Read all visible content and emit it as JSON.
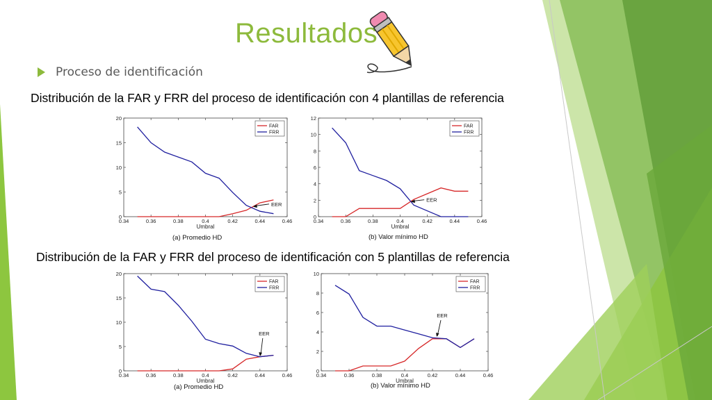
{
  "slide": {
    "title": "Resultados",
    "bullet": "Proceso de identificación",
    "section_1": "Distribución de la FAR y FRR del proceso de identificación con 4 plantillas de referencia",
    "section_2": "Distribución de la FAR y FRR del proceso de identificación con 5 plantillas de referencia"
  },
  "colors": {
    "accent": "#8dba3c",
    "far": "#d62728",
    "frr": "#1f1f9f",
    "text_gray": "#595959"
  },
  "icons": {
    "pencil": "pencil-icon",
    "bullet": "triangle-bullet-icon"
  },
  "chart_data": [
    {
      "type": "line",
      "caption": "(a) Promedio HD",
      "xlabel": "Umbral",
      "ylabel": "",
      "xlim": [
        0.34,
        0.46
      ],
      "ylim": [
        0,
        20
      ],
      "xticks": [
        0.34,
        0.36,
        0.38,
        0.4,
        0.42,
        0.44,
        0.46
      ],
      "yticks": [
        0,
        5,
        10,
        15,
        20
      ],
      "legend": "top-right",
      "series": [
        {
          "name": "FAR",
          "x": [
            0.35,
            0.36,
            0.37,
            0.38,
            0.39,
            0.4,
            0.41,
            0.42,
            0.43,
            0.44,
            0.45
          ],
          "y": [
            0,
            0,
            0,
            0,
            0,
            0,
            0,
            0.6,
            1.3,
            2.8,
            3.4
          ]
        },
        {
          "name": "FRR",
          "x": [
            0.35,
            0.36,
            0.37,
            0.38,
            0.39,
            0.4,
            0.41,
            0.42,
            0.43,
            0.44,
            0.45
          ],
          "y": [
            18.2,
            15,
            13.1,
            12.1,
            11.1,
            8.8,
            7.8,
            4.9,
            2.3,
            1.1,
            0.6
          ]
        }
      ],
      "annotation": {
        "label": "EER",
        "x": 0.435,
        "y": 2.0
      }
    },
    {
      "type": "line",
      "caption": "(b) Valor mínimo HD",
      "xlabel": "Umbral",
      "ylabel": "",
      "xlim": [
        0.34,
        0.46
      ],
      "ylim": [
        0,
        12
      ],
      "xticks": [
        0.34,
        0.36,
        0.38,
        0.4,
        0.42,
        0.44,
        0.46
      ],
      "yticks": [
        0,
        2,
        4,
        6,
        8,
        10,
        12
      ],
      "legend": "top-right",
      "series": [
        {
          "name": "FAR",
          "x": [
            0.35,
            0.36,
            0.37,
            0.38,
            0.39,
            0.4,
            0.41,
            0.42,
            0.43,
            0.44,
            0.45
          ],
          "y": [
            0,
            0,
            1,
            1,
            1,
            1,
            2.1,
            2.8,
            3.5,
            3.1,
            3.1
          ]
        },
        {
          "name": "FRR",
          "x": [
            0.35,
            0.36,
            0.37,
            0.38,
            0.39,
            0.4,
            0.41,
            0.42,
            0.43,
            0.44,
            0.45
          ],
          "y": [
            10.8,
            9,
            5.6,
            5,
            4.4,
            3.4,
            1.4,
            0.7,
            0,
            0,
            0
          ]
        }
      ],
      "annotation": {
        "label": "EER",
        "x": 0.408,
        "y": 1.8
      }
    },
    {
      "type": "line",
      "caption": "(a) Promedio HD",
      "xlabel": "Umbral",
      "ylabel": "",
      "xlim": [
        0.34,
        0.46
      ],
      "ylim": [
        0,
        20
      ],
      "xticks": [
        0.34,
        0.36,
        0.38,
        0.4,
        0.42,
        0.44,
        0.46
      ],
      "yticks": [
        0,
        5,
        10,
        15,
        20
      ],
      "legend": "top-right",
      "series": [
        {
          "name": "FAR",
          "x": [
            0.35,
            0.36,
            0.37,
            0.38,
            0.39,
            0.4,
            0.41,
            0.42,
            0.43,
            0.44,
            0.45
          ],
          "y": [
            0,
            0,
            0,
            0,
            0,
            0,
            0,
            0.4,
            2.4,
            2.9,
            3.2
          ]
        },
        {
          "name": "FRR",
          "x": [
            0.35,
            0.36,
            0.37,
            0.38,
            0.39,
            0.4,
            0.41,
            0.42,
            0.43,
            0.44,
            0.45
          ],
          "y": [
            19.5,
            16.8,
            16.3,
            13.5,
            10.2,
            6.5,
            5.6,
            5.1,
            3.6,
            2.9,
            3.2
          ]
        }
      ],
      "annotation": {
        "label": "EER",
        "x": 0.44,
        "y": 3.0
      }
    },
    {
      "type": "line",
      "caption": "(b) Valor mínimo HD",
      "xlabel": "Umbral",
      "ylabel": "",
      "xlim": [
        0.34,
        0.46
      ],
      "ylim": [
        0,
        10
      ],
      "xticks": [
        0.34,
        0.36,
        0.38,
        0.4,
        0.42,
        0.44,
        0.46
      ],
      "yticks": [
        0,
        2,
        4,
        6,
        8,
        10
      ],
      "legend": "top-right",
      "series": [
        {
          "name": "FAR",
          "x": [
            0.35,
            0.36,
            0.37,
            0.38,
            0.39,
            0.4,
            0.41,
            0.42,
            0.43,
            0.44,
            0.45
          ],
          "y": [
            0,
            0,
            0.5,
            0.5,
            0.5,
            1,
            2.3,
            3.3,
            3.3,
            2.4,
            3.3
          ]
        },
        {
          "name": "FRR",
          "x": [
            0.35,
            0.36,
            0.37,
            0.38,
            0.39,
            0.4,
            0.41,
            0.42,
            0.43,
            0.44,
            0.45
          ],
          "y": [
            8.8,
            7.9,
            5.5,
            4.6,
            4.6,
            4.2,
            3.8,
            3.4,
            3.3,
            2.4,
            3.3
          ]
        }
      ],
      "annotation": {
        "label": "EER",
        "x": 0.423,
        "y": 3.5
      }
    }
  ]
}
